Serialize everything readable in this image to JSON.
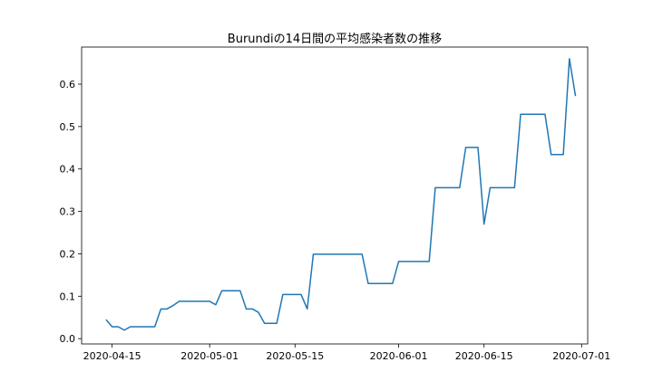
{
  "chart_data": {
    "type": "line",
    "title": "Burundiの14日間の平均感染者数の推移",
    "xlabel": "",
    "ylabel": "",
    "x_axis": {
      "kind": "date",
      "ticks": [
        "2020-04-15",
        "2020-05-01",
        "2020-05-15",
        "2020-06-01",
        "2020-06-15",
        "2020-07-01"
      ],
      "range": [
        "2020-04-10",
        "2020-07-02"
      ]
    },
    "y_axis": {
      "ticks": [
        0.0,
        0.1,
        0.2,
        0.3,
        0.4,
        0.5,
        0.6
      ],
      "tick_labels": [
        "0.0",
        "0.1",
        "0.2",
        "0.3",
        "0.4",
        "0.5",
        "0.6"
      ],
      "range": [
        -0.0125,
        0.6875
      ]
    },
    "grid": false,
    "legend": "none",
    "colors": {
      "series": "#1f77b4",
      "axis": "#000000",
      "background": "#ffffff"
    },
    "series": [
      {
        "x": [
          "2020-04-14",
          "2020-04-15",
          "2020-04-16",
          "2020-04-17",
          "2020-04-18",
          "2020-04-19",
          "2020-04-20",
          "2020-04-21",
          "2020-04-22",
          "2020-04-23",
          "2020-04-24",
          "2020-04-25",
          "2020-04-26",
          "2020-04-27",
          "2020-04-28",
          "2020-04-29",
          "2020-04-30",
          "2020-05-01",
          "2020-05-02",
          "2020-05-03",
          "2020-05-04",
          "2020-05-05",
          "2020-05-06",
          "2020-05-07",
          "2020-05-08",
          "2020-05-09",
          "2020-05-10",
          "2020-05-11",
          "2020-05-12",
          "2020-05-13",
          "2020-05-14",
          "2020-05-15",
          "2020-05-16",
          "2020-05-17",
          "2020-05-18",
          "2020-05-19",
          "2020-05-20",
          "2020-05-21",
          "2020-05-22",
          "2020-05-23",
          "2020-05-24",
          "2020-05-25",
          "2020-05-26",
          "2020-05-27",
          "2020-05-28",
          "2020-05-29",
          "2020-05-30",
          "2020-05-31",
          "2020-06-01",
          "2020-06-02",
          "2020-06-03",
          "2020-06-04",
          "2020-06-05",
          "2020-06-06",
          "2020-06-07",
          "2020-06-08",
          "2020-06-09",
          "2020-06-10",
          "2020-06-11",
          "2020-06-12",
          "2020-06-13",
          "2020-06-14",
          "2020-06-15",
          "2020-06-16",
          "2020-06-17",
          "2020-06-18",
          "2020-06-19",
          "2020-06-20",
          "2020-06-21",
          "2020-06-22",
          "2020-06-23",
          "2020-06-24",
          "2020-06-25",
          "2020-06-26",
          "2020-06-27",
          "2020-06-28",
          "2020-06-29",
          "2020-06-30"
        ],
        "y": [
          0.045,
          0.028,
          0.028,
          0.02,
          0.028,
          0.028,
          0.028,
          0.028,
          0.028,
          0.07,
          0.07,
          0.078,
          0.088,
          0.088,
          0.088,
          0.088,
          0.088,
          0.088,
          0.08,
          0.113,
          0.113,
          0.113,
          0.113,
          0.07,
          0.07,
          0.062,
          0.036,
          0.036,
          0.036,
          0.104,
          0.104,
          0.104,
          0.104,
          0.07,
          0.199,
          0.199,
          0.199,
          0.199,
          0.199,
          0.199,
          0.199,
          0.199,
          0.199,
          0.13,
          0.13,
          0.13,
          0.13,
          0.13,
          0.182,
          0.182,
          0.182,
          0.182,
          0.182,
          0.182,
          0.356,
          0.356,
          0.356,
          0.356,
          0.356,
          0.451,
          0.451,
          0.451,
          0.27,
          0.356,
          0.356,
          0.356,
          0.356,
          0.356,
          0.529,
          0.529,
          0.529,
          0.529,
          0.529,
          0.434,
          0.434,
          0.434,
          0.66,
          0.572
        ]
      }
    ]
  }
}
